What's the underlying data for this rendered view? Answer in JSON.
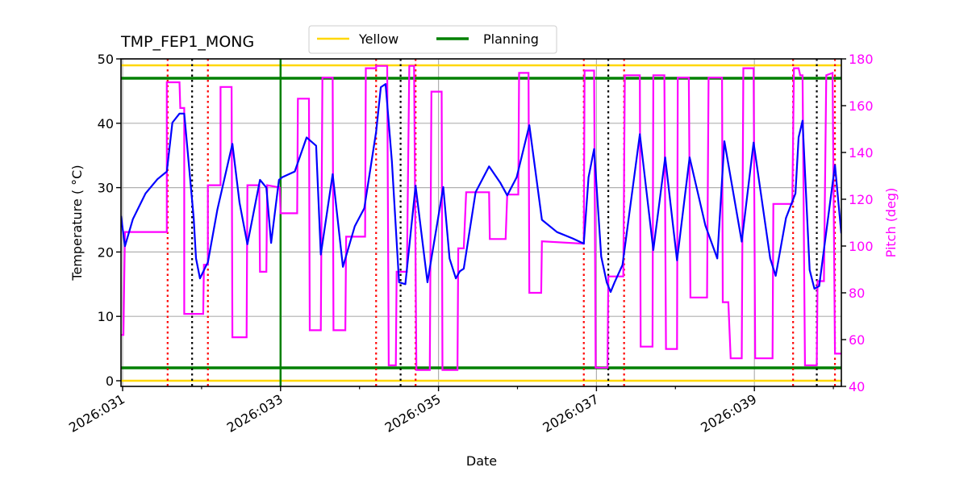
{
  "chart_data": {
    "type": "line",
    "title": "TMP_FEP1_MONG",
    "xlabel": "Date",
    "ylabel": "Temperature ($^\\circ$C)",
    "ylabel_display": "Temperature ( °C)",
    "y2label": "Pitch (deg)",
    "xlim_day": [
      30.98,
      40.1
    ],
    "ylim": [
      -1,
      50
    ],
    "y2lim": [
      40,
      180
    ],
    "grid": true,
    "legend": {
      "position": "upper center, above plot",
      "entries": [
        {
          "label": "Yellow",
          "color": "#ffd700"
        },
        {
          "label": "Planning",
          "color": "#008000"
        }
      ]
    },
    "x_ticks": [
      {
        "day": 31,
        "label": "2026:031"
      },
      {
        "day": 33,
        "label": "2026:033"
      },
      {
        "day": 35,
        "label": "2026:035"
      },
      {
        "day": 37,
        "label": "2026:037"
      },
      {
        "day": 39,
        "label": "2026:039"
      }
    ],
    "x_minor_ticks": [
      32,
      34,
      36,
      38,
      40
    ],
    "y_ticks": [
      0,
      10,
      20,
      30,
      40,
      50
    ],
    "y2_ticks": [
      40,
      60,
      80,
      100,
      120,
      140,
      160,
      180
    ],
    "limits": {
      "yellow_low": 0,
      "yellow_high": 49,
      "planning_low": 2,
      "planning_high": 47,
      "planning_vertical_day": 33.0
    },
    "vertical_markers": [
      {
        "day": 31.57,
        "style": "red-dotted"
      },
      {
        "day": 31.88,
        "style": "black-dotted"
      },
      {
        "day": 32.08,
        "style": "red-dotted"
      },
      {
        "day": 34.21,
        "style": "red-dotted"
      },
      {
        "day": 34.52,
        "style": "black-dotted"
      },
      {
        "day": 34.71,
        "style": "red-dotted"
      },
      {
        "day": 36.84,
        "style": "red-dotted"
      },
      {
        "day": 37.15,
        "style": "black-dotted"
      },
      {
        "day": 37.35,
        "style": "red-dotted"
      },
      {
        "day": 39.49,
        "style": "red-dotted"
      },
      {
        "day": 39.79,
        "style": "black-dotted"
      },
      {
        "day": 40.02,
        "style": "red-dotted"
      }
    ],
    "series": [
      {
        "name": "TMP_FEP1_MONG",
        "axis": "left",
        "color": "#0000ff",
        "points": [
          [
            30.98,
            25.6
          ],
          [
            31.03,
            20.9
          ],
          [
            31.13,
            25.1
          ],
          [
            31.29,
            29.1
          ],
          [
            31.44,
            31.3
          ],
          [
            31.56,
            32.5
          ],
          [
            31.63,
            40.1
          ],
          [
            31.72,
            41.5
          ],
          [
            31.78,
            41.5
          ],
          [
            31.9,
            25.3
          ],
          [
            31.93,
            19.0
          ],
          [
            31.98,
            15.9
          ],
          [
            32.05,
            17.7
          ],
          [
            32.08,
            18.4
          ],
          [
            32.2,
            26.6
          ],
          [
            32.39,
            36.8
          ],
          [
            32.48,
            27.7
          ],
          [
            32.58,
            21.2
          ],
          [
            32.74,
            31.2
          ],
          [
            32.82,
            30.0
          ],
          [
            32.88,
            21.4
          ],
          [
            32.98,
            31.2
          ],
          [
            33.02,
            31.6
          ],
          [
            33.18,
            32.5
          ],
          [
            33.33,
            37.8
          ],
          [
            33.45,
            36.5
          ],
          [
            33.51,
            19.6
          ],
          [
            33.66,
            32.1
          ],
          [
            33.79,
            17.7
          ],
          [
            33.94,
            24.0
          ],
          [
            34.06,
            26.8
          ],
          [
            34.21,
            38.7
          ],
          [
            34.27,
            45.6
          ],
          [
            34.33,
            46.1
          ],
          [
            34.41,
            34.1
          ],
          [
            34.5,
            15.3
          ],
          [
            34.58,
            15.0
          ],
          [
            34.71,
            30.3
          ],
          [
            34.86,
            15.3
          ],
          [
            35.06,
            30.1
          ],
          [
            35.14,
            19.0
          ],
          [
            35.22,
            15.9
          ],
          [
            35.27,
            17.0
          ],
          [
            35.32,
            17.4
          ],
          [
            35.47,
            29.3
          ],
          [
            35.64,
            33.3
          ],
          [
            35.78,
            30.8
          ],
          [
            35.87,
            28.8
          ],
          [
            35.99,
            31.6
          ],
          [
            36.15,
            39.7
          ],
          [
            36.31,
            25.0
          ],
          [
            36.5,
            23.1
          ],
          [
            36.7,
            22.1
          ],
          [
            36.84,
            21.3
          ],
          [
            36.9,
            31.6
          ],
          [
            36.97,
            36.0
          ],
          [
            37.06,
            19.3
          ],
          [
            37.13,
            15.3
          ],
          [
            37.18,
            13.8
          ],
          [
            37.23,
            15.3
          ],
          [
            37.33,
            18.0
          ],
          [
            37.55,
            38.3
          ],
          [
            37.72,
            20.3
          ],
          [
            37.87,
            34.7
          ],
          [
            38.02,
            18.7
          ],
          [
            38.18,
            34.7
          ],
          [
            38.38,
            24.1
          ],
          [
            38.53,
            19.0
          ],
          [
            38.62,
            37.2
          ],
          [
            38.84,
            21.6
          ],
          [
            38.99,
            37.0
          ],
          [
            39.2,
            19.0
          ],
          [
            39.27,
            16.3
          ],
          [
            39.4,
            25.3
          ],
          [
            39.52,
            29.1
          ],
          [
            39.56,
            37.8
          ],
          [
            39.61,
            40.4
          ],
          [
            39.7,
            17.2
          ],
          [
            39.76,
            14.3
          ],
          [
            39.82,
            14.7
          ],
          [
            40.02,
            33.5
          ],
          [
            40.1,
            22.9
          ]
        ]
      },
      {
        "name": "Pitch",
        "axis": "right",
        "color": "#ff00ff",
        "step": true,
        "points": [
          [
            30.98,
            62
          ],
          [
            31.01,
            62
          ],
          [
            31.03,
            106
          ],
          [
            31.56,
            106
          ],
          [
            31.56,
            170
          ],
          [
            31.72,
            170
          ],
          [
            31.73,
            159
          ],
          [
            31.78,
            159
          ],
          [
            31.78,
            71
          ],
          [
            32.02,
            71
          ],
          [
            32.03,
            92
          ],
          [
            32.08,
            92
          ],
          [
            32.08,
            126
          ],
          [
            32.24,
            126
          ],
          [
            32.24,
            168
          ],
          [
            32.38,
            168
          ],
          [
            32.39,
            61
          ],
          [
            32.57,
            61
          ],
          [
            32.58,
            126
          ],
          [
            32.73,
            126
          ],
          [
            32.74,
            89
          ],
          [
            32.82,
            89
          ],
          [
            32.83,
            126
          ],
          [
            32.99,
            125
          ],
          [
            33.0,
            114
          ],
          [
            33.21,
            114
          ],
          [
            33.22,
            163
          ],
          [
            33.36,
            163
          ],
          [
            33.37,
            64
          ],
          [
            33.51,
            64
          ],
          [
            33.53,
            172
          ],
          [
            33.66,
            172
          ],
          [
            33.67,
            64
          ],
          [
            33.82,
            64
          ],
          [
            33.83,
            104
          ],
          [
            34.07,
            104
          ],
          [
            34.08,
            176
          ],
          [
            34.21,
            176
          ],
          [
            34.21,
            177
          ],
          [
            34.35,
            177
          ],
          [
            34.37,
            49
          ],
          [
            34.46,
            49
          ],
          [
            34.47,
            89
          ],
          [
            34.6,
            89
          ],
          [
            34.63,
            177
          ],
          [
            34.69,
            177
          ],
          [
            34.72,
            47
          ],
          [
            34.89,
            47
          ],
          [
            34.91,
            166
          ],
          [
            35.04,
            166
          ],
          [
            35.05,
            47
          ],
          [
            35.24,
            47
          ],
          [
            35.25,
            99
          ],
          [
            35.32,
            99
          ],
          [
            35.35,
            123
          ],
          [
            35.64,
            123
          ],
          [
            35.65,
            103
          ],
          [
            35.85,
            103
          ],
          [
            35.87,
            122
          ],
          [
            36.01,
            122
          ],
          [
            36.02,
            174
          ],
          [
            36.14,
            174
          ],
          [
            36.15,
            80
          ],
          [
            36.3,
            80
          ],
          [
            36.31,
            102
          ],
          [
            36.84,
            101
          ],
          [
            36.85,
            175
          ],
          [
            36.97,
            175
          ],
          [
            36.99,
            48
          ],
          [
            37.14,
            48
          ],
          [
            37.15,
            87
          ],
          [
            37.34,
            87
          ],
          [
            37.36,
            173
          ],
          [
            37.55,
            173
          ],
          [
            37.56,
            57
          ],
          [
            37.71,
            57
          ],
          [
            37.72,
            173
          ],
          [
            37.86,
            173
          ],
          [
            37.88,
            56
          ],
          [
            38.02,
            56
          ],
          [
            38.03,
            172
          ],
          [
            38.17,
            172
          ],
          [
            38.19,
            78
          ],
          [
            38.4,
            78
          ],
          [
            38.42,
            172
          ],
          [
            38.59,
            172
          ],
          [
            38.6,
            76
          ],
          [
            38.67,
            76
          ],
          [
            38.7,
            52
          ],
          [
            38.84,
            52
          ],
          [
            38.86,
            176
          ],
          [
            38.99,
            176
          ],
          [
            39.01,
            52
          ],
          [
            39.23,
            52
          ],
          [
            39.24,
            118
          ],
          [
            39.48,
            118
          ],
          [
            39.5,
            176
          ],
          [
            39.56,
            176
          ],
          [
            39.58,
            173
          ],
          [
            39.61,
            173
          ],
          [
            39.64,
            49
          ],
          [
            39.79,
            49
          ],
          [
            39.8,
            85
          ],
          [
            39.88,
            85
          ],
          [
            39.91,
            173
          ],
          [
            39.99,
            174
          ],
          [
            40.02,
            54
          ],
          [
            40.1,
            54
          ]
        ]
      }
    ]
  }
}
